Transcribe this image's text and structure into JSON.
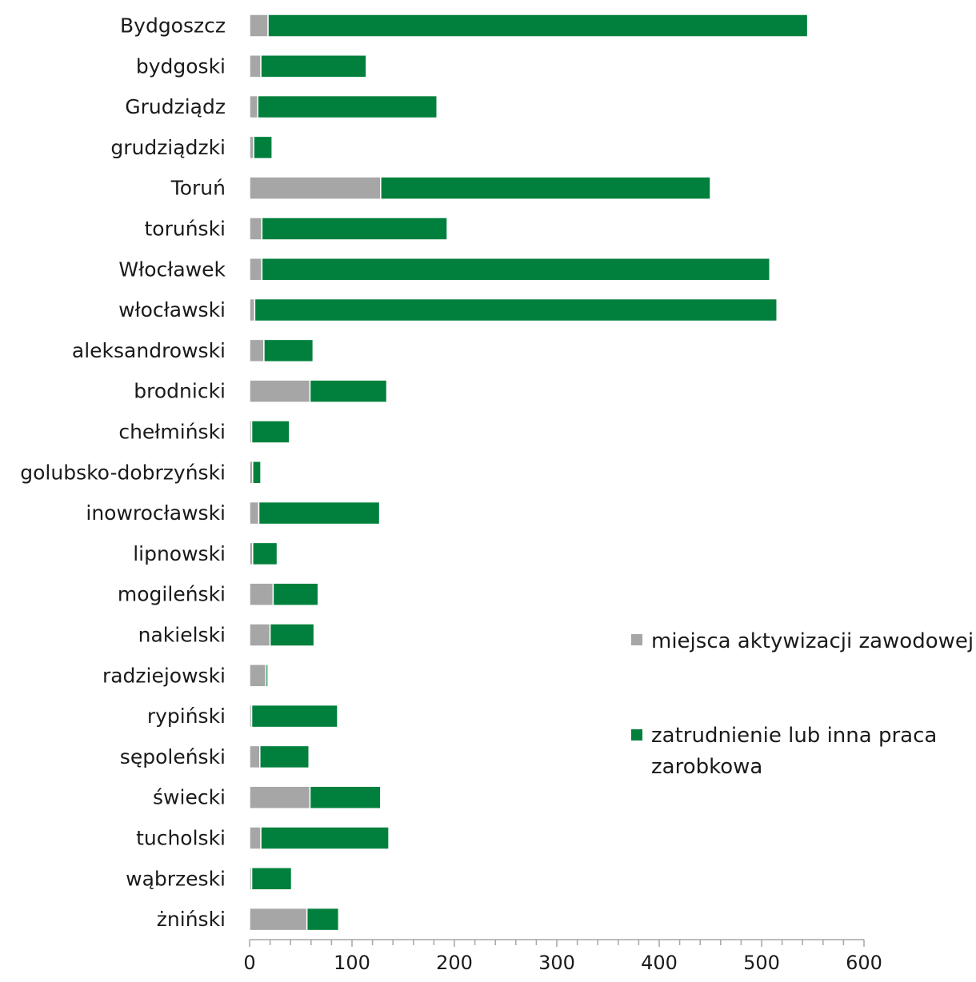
{
  "chart_data": {
    "type": "bar",
    "orientation": "horizontal",
    "stacked": true,
    "categories": [
      "Bydgoszcz",
      "bydgoski",
      "Grudziądz",
      "grudziądzki",
      "Toruń",
      "toruński",
      "Włocławek",
      "włocławski",
      "aleksandrowski",
      "brodnicki",
      "chełmiński",
      "golubsko-dobrzyński",
      "inowrocławski",
      "lipnowski",
      "mogileński",
      "nakielski",
      "radziejowski",
      "rypiński",
      "sępoleński",
      "świecki",
      "tucholski",
      "wąbrzeski",
      "żniński"
    ],
    "series": [
      {
        "name": "miejsca aktywizacji zawodowej",
        "color": "#a6a6a6",
        "values": [
          18,
          11,
          8,
          4,
          128,
          12,
          12,
          5,
          14,
          59,
          2,
          3,
          9,
          3,
          23,
          20,
          16,
          2,
          10,
          59,
          11,
          2,
          56
        ]
      },
      {
        "name": "zatrudnienie lub inna praca zarobkowa",
        "color": "#00803c",
        "values": [
          527,
          103,
          175,
          18,
          322,
          181,
          496,
          510,
          48,
          75,
          37,
          8,
          118,
          24,
          44,
          43,
          2,
          84,
          48,
          69,
          125,
          39,
          31
        ]
      }
    ],
    "xlim": [
      0,
      600
    ],
    "x_ticks": [
      "0",
      "100",
      "200",
      "300",
      "400",
      "500",
      "600"
    ],
    "legend_position": "right",
    "grid": false
  }
}
